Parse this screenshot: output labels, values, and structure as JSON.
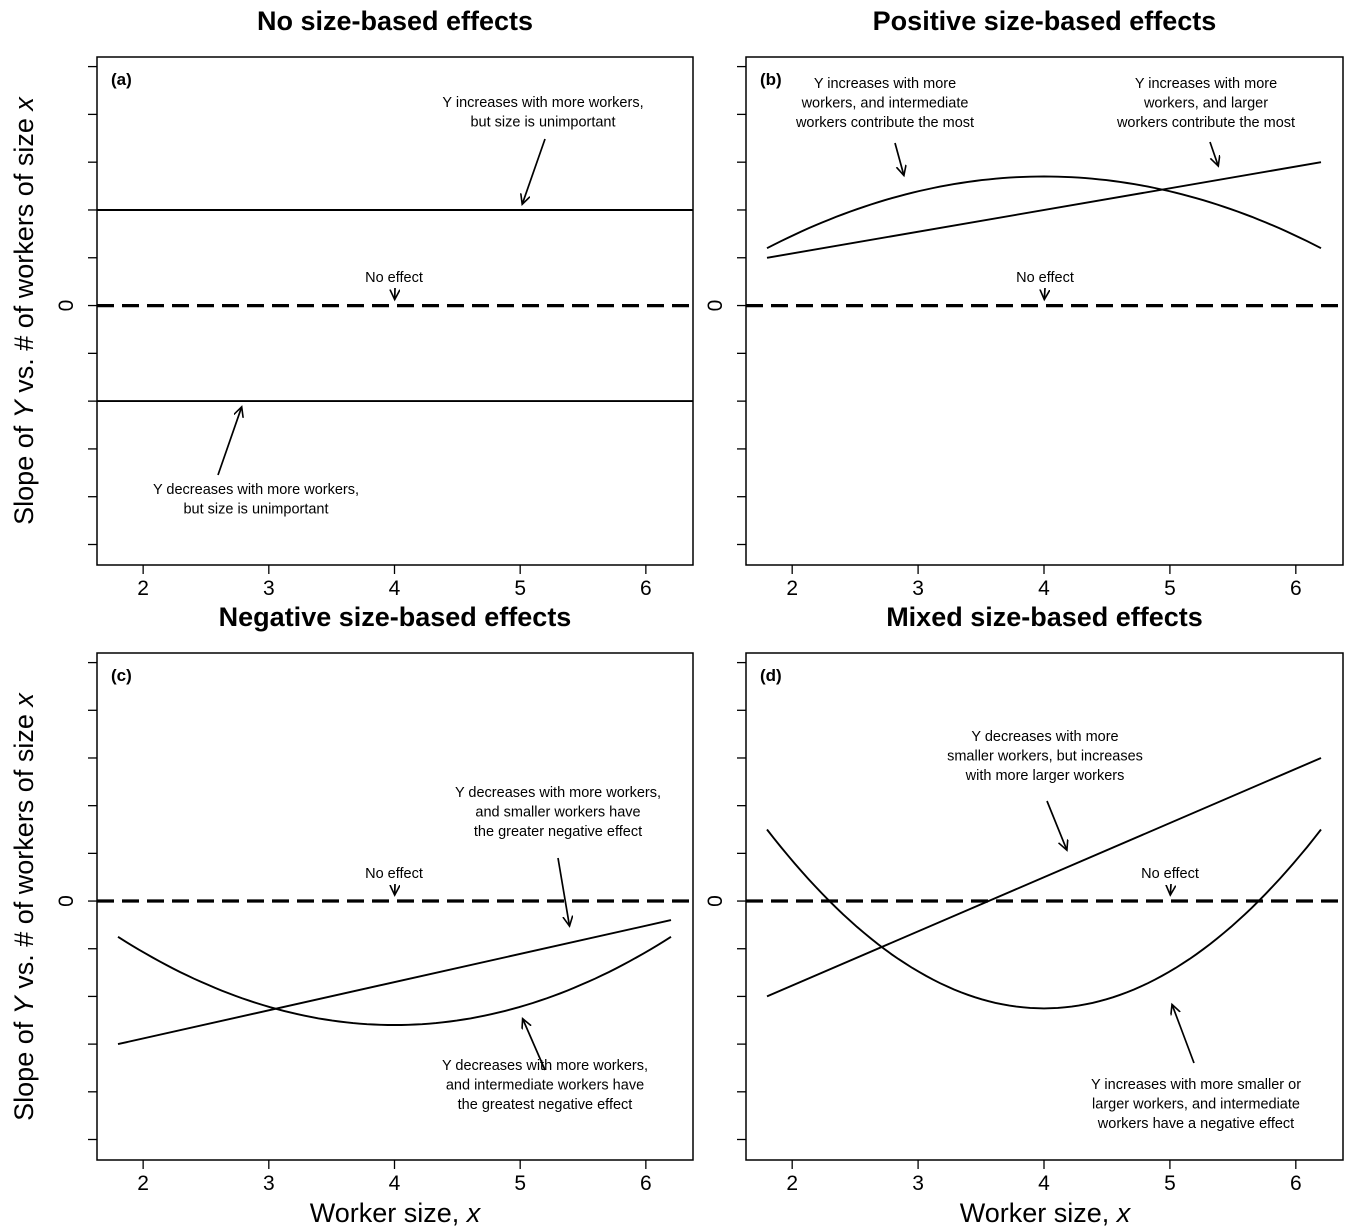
{
  "figure": {
    "ylabel_parts": [
      "Slope of ",
      "Y",
      " vs. # of workers of size ",
      "x"
    ],
    "xlabel_parts": [
      "Worker size, ",
      "x"
    ]
  },
  "chart_data": [
    {
      "type": "line",
      "panel_label": "(a)",
      "title": "No size-based effects",
      "xlabel": "Worker size, x",
      "ylabel": "Slope of Y vs. # of workers of size x",
      "xlim": [
        1.8,
        6.2
      ],
      "ylim": [
        -5,
        5
      ],
      "x_ticks": [
        2,
        3,
        4,
        5,
        6
      ],
      "y_ticks": [
        0
      ],
      "series": [
        {
          "x": [
            1.8,
            6.2
          ],
          "y": [
            2,
            2
          ],
          "style": "solid"
        },
        {
          "x": [
            1.8,
            6.2
          ],
          "y": [
            -2,
            -2
          ],
          "style": "solid"
        },
        {
          "x": [
            1.8,
            6.2
          ],
          "y": [
            0,
            0
          ],
          "style": "dashed"
        }
      ],
      "annotations": [
        {
          "lines": [
            "Y increases with more workers,",
            "but size is unimportant"
          ],
          "target": [
            5.0,
            2.0
          ]
        },
        {
          "lines": [
            "No effect"
          ],
          "target": [
            4.0,
            0.0
          ]
        },
        {
          "lines": [
            "Y decreases with more workers,",
            "but size is unimportant"
          ],
          "target": [
            2.8,
            -2.0
          ]
        }
      ]
    },
    {
      "type": "line",
      "panel_label": "(b)",
      "title": "Positive size-based effects",
      "xlabel": "Worker size, x",
      "ylabel": "Slope of Y vs. # of workers of size x",
      "xlim": [
        1.8,
        6.2
      ],
      "ylim": [
        -5,
        5
      ],
      "x_ticks": [
        2,
        3,
        4,
        5,
        6
      ],
      "y_ticks": [
        0
      ],
      "series": [
        {
          "kind": "quadratic",
          "vertex": 4.0,
          "peak": 2.7,
          "edge": 1.2,
          "style": "solid"
        },
        {
          "x": [
            1.8,
            6.2
          ],
          "y": [
            1.0,
            3.0
          ],
          "style": "solid"
        },
        {
          "x": [
            1.8,
            6.2
          ],
          "y": [
            0,
            0
          ],
          "style": "dashed"
        }
      ],
      "annotations": [
        {
          "lines": [
            "Y increases with more",
            "workers, and intermediate",
            "workers contribute the most"
          ],
          "target": [
            2.9,
            2.6
          ]
        },
        {
          "lines": [
            "Y increases with more",
            "workers, and larger",
            "workers contribute the most"
          ],
          "target": [
            5.4,
            2.8
          ]
        },
        {
          "lines": [
            "No effect"
          ],
          "target": [
            4.0,
            0.0
          ]
        }
      ]
    },
    {
      "type": "line",
      "panel_label": "(c)",
      "title": "Negative size-based effects",
      "xlabel": "Worker size, x",
      "ylabel": "Slope of Y vs. # of workers of size x",
      "xlim": [
        1.8,
        6.2
      ],
      "ylim": [
        -5,
        5
      ],
      "x_ticks": [
        2,
        3,
        4,
        5,
        6
      ],
      "y_ticks": [
        0
      ],
      "series": [
        {
          "kind": "quadratic",
          "vertex": 4.0,
          "peak": -2.6,
          "edge": -0.75,
          "style": "solid"
        },
        {
          "x": [
            1.8,
            6.2
          ],
          "y": [
            -3.0,
            -0.4
          ],
          "style": "solid"
        },
        {
          "x": [
            1.8,
            6.2
          ],
          "y": [
            0,
            0
          ],
          "style": "dashed"
        }
      ],
      "annotations": [
        {
          "lines": [
            "Y decreases with more workers,",
            "and smaller workers have",
            "the greater negative effect"
          ],
          "target": [
            5.4,
            -0.65
          ]
        },
        {
          "lines": [
            "No effect"
          ],
          "target": [
            4.0,
            0.0
          ]
        },
        {
          "lines": [
            "Y decreases with more workers,",
            "and intermediate workers have",
            "the greatest negative effect"
          ],
          "target": [
            5.0,
            -2.35
          ]
        }
      ]
    },
    {
      "type": "line",
      "panel_label": "(d)",
      "title": "Mixed size-based effects",
      "xlabel": "Worker size, x",
      "ylabel": "Slope of Y vs. # of workers of size x",
      "xlim": [
        1.8,
        6.2
      ],
      "ylim": [
        -5,
        5
      ],
      "x_ticks": [
        2,
        3,
        4,
        5,
        6
      ],
      "y_ticks": [
        0
      ],
      "series": [
        {
          "x": [
            1.8,
            6.2
          ],
          "y": [
            -2.0,
            3.0
          ],
          "style": "solid"
        },
        {
          "kind": "quadratic",
          "vertex": 4.0,
          "peak": -2.25,
          "edge": 1.5,
          "style": "solid"
        },
        {
          "x": [
            1.8,
            6.2
          ],
          "y": [
            0,
            0
          ],
          "style": "dashed"
        }
      ],
      "annotations": [
        {
          "lines": [
            "Y decreases with more",
            "smaller workers, but increases",
            "with more larger workers"
          ],
          "target": [
            4.2,
            0.95
          ]
        },
        {
          "lines": [
            "No effect"
          ],
          "target": [
            5.0,
            0.0
          ]
        },
        {
          "lines": [
            "Y increases with more smaller or",
            "larger workers, and intermediate",
            "workers have a negative effect"
          ],
          "target": [
            5.0,
            -2.05
          ]
        }
      ]
    }
  ]
}
